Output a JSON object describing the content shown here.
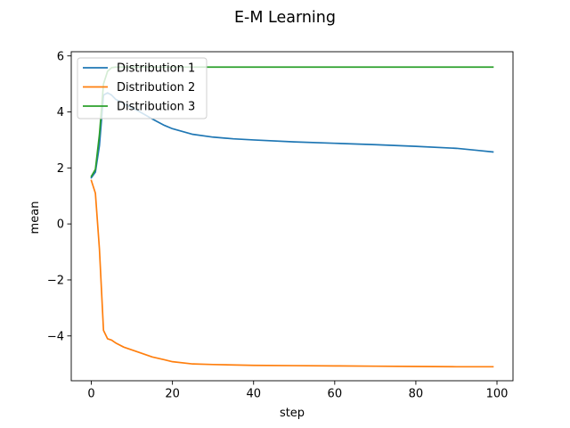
{
  "chart_data": {
    "type": "line",
    "title": "E-M Learning",
    "xlabel": "step",
    "ylabel": "mean",
    "xlim": [
      -4.95,
      103.95
    ],
    "ylim": [
      -5.6,
      6.15
    ],
    "xticks": [
      0,
      20,
      40,
      60,
      80,
      100
    ],
    "yticks": [
      -4,
      -2,
      0,
      2,
      4,
      6
    ],
    "xtick_labels": [
      "0",
      "20",
      "40",
      "60",
      "80",
      "100"
    ],
    "ytick_labels": [
      "−4",
      "−2",
      "0",
      "2",
      "4",
      "6"
    ],
    "grid": false,
    "legend_position": "upper-left",
    "series": [
      {
        "name": "Distribution 1",
        "color": "#1f77b4",
        "x": [
          0,
          1,
          2,
          3,
          4,
          5,
          6,
          8,
          10,
          12,
          15,
          18,
          20,
          25,
          30,
          35,
          40,
          50,
          60,
          70,
          80,
          90,
          95,
          99
        ],
        "y": [
          1.65,
          1.85,
          2.8,
          4.6,
          4.68,
          4.6,
          4.45,
          4.3,
          4.15,
          4.0,
          3.75,
          3.52,
          3.4,
          3.2,
          3.1,
          3.04,
          3.0,
          2.93,
          2.88,
          2.83,
          2.77,
          2.7,
          2.63,
          2.57
        ]
      },
      {
        "name": "Distribution 2",
        "color": "#ff7f0e",
        "x": [
          0,
          1,
          2,
          3,
          4,
          5,
          6,
          8,
          10,
          12,
          15,
          18,
          20,
          25,
          30,
          40,
          50,
          60,
          70,
          80,
          90,
          99
        ],
        "y": [
          1.55,
          1.1,
          -0.9,
          -3.8,
          -4.1,
          -4.15,
          -4.25,
          -4.4,
          -4.5,
          -4.6,
          -4.75,
          -4.85,
          -4.92,
          -5.0,
          -5.02,
          -5.05,
          -5.06,
          -5.07,
          -5.08,
          -5.09,
          -5.1,
          -5.1
        ]
      },
      {
        "name": "Distribution 3",
        "color": "#2ca02c",
        "x": [
          0,
          1,
          2,
          3,
          4,
          5,
          6,
          8,
          10,
          20,
          40,
          60,
          80,
          99
        ],
        "y": [
          1.7,
          1.95,
          3.2,
          5.0,
          5.45,
          5.58,
          5.6,
          5.6,
          5.6,
          5.6,
          5.6,
          5.6,
          5.6,
          5.6
        ]
      }
    ]
  }
}
